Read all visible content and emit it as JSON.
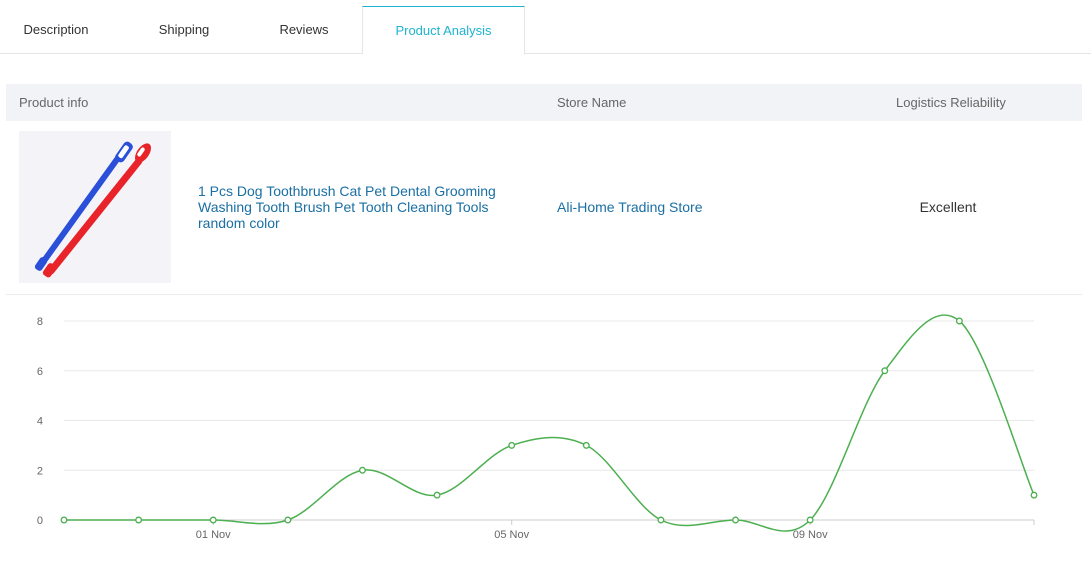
{
  "tabs": [
    {
      "label": "Description",
      "active": false
    },
    {
      "label": "Shipping",
      "active": false
    },
    {
      "label": "Reviews",
      "active": false
    },
    {
      "label": "Product Analysis",
      "active": true
    }
  ],
  "table": {
    "headers": {
      "product_info": "Product info",
      "store_name": "Store Name",
      "logistics": "Logistics Reliability"
    },
    "row": {
      "product_title": "1 Pcs Dog Toothbrush Cat Pet Dental Grooming Washing Tooth Brush Pet Tooth Cleaning Tools random color",
      "store_name": "Ali-Home Trading Store",
      "logistics": "Excellent"
    }
  },
  "colors": {
    "accent": "#1fb3d0",
    "link": "#1a6fa3",
    "line": "#4caf50"
  },
  "chart_data": {
    "type": "line",
    "x": [
      "30 Oct",
      "31 Oct",
      "01 Nov",
      "02 Nov",
      "03 Nov",
      "04 Nov",
      "05 Nov",
      "06 Nov",
      "07 Nov",
      "08 Nov",
      "09 Nov",
      "10 Nov",
      "11 Nov",
      "12 Nov"
    ],
    "x_tick_labels": [
      "01 Nov",
      "05 Nov",
      "09 Nov"
    ],
    "y_ticks": [
      "0",
      "2",
      "4",
      "6",
      "8"
    ],
    "ylim": [
      0,
      8
    ],
    "series": [
      {
        "values": [
          0,
          0,
          0,
          0,
          2,
          1,
          3,
          3,
          0,
          0,
          0,
          6,
          8,
          1
        ]
      }
    ],
    "grid": true
  }
}
